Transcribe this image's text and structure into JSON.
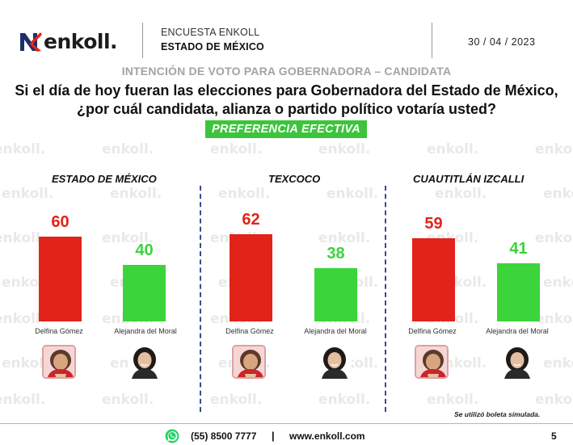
{
  "header": {
    "logo_text": "enkoll.",
    "survey_label": "ENCUESTA ENKOLL",
    "state_label": "ESTADO DE MÉXICO",
    "date": "30 / 04 / 2023"
  },
  "subtitle": "INTENCIÓN DE VOTO PARA GOBERNADORA – CANDIDATA",
  "question_line1": "Si el día de hoy fueran las elecciones para Gobernadora del Estado de México,",
  "question_line2": "¿por cuál candidata, alianza o partido político votaría usted?",
  "badge": "PREFERENCIA EFECTIVA",
  "watermark_text": "enkoll.",
  "colors": {
    "candidate_1": "#e2231a",
    "candidate_2": "#3bd43b",
    "badge": "#3cc43c",
    "separator": "#3a4a8a"
  },
  "chart_data": [
    {
      "type": "bar",
      "title": "ESTADO DE MÉXICO",
      "categories": [
        "Delfina Gómez",
        "Alejandra del Moral"
      ],
      "values": [
        60,
        40
      ],
      "ylim": [
        0,
        100
      ]
    },
    {
      "type": "bar",
      "title": "TEXCOCO",
      "categories": [
        "Delfina Gómez",
        "Alejandra del Moral"
      ],
      "values": [
        62,
        38
      ],
      "ylim": [
        0,
        100
      ]
    },
    {
      "type": "bar",
      "title": "CUAUTITLÁN IZCALLI",
      "categories": [
        "Delfina Gómez",
        "Alejandra del Moral"
      ],
      "values": [
        59,
        41
      ],
      "ylim": [
        0,
        100
      ]
    }
  ],
  "footnote": "Se utilizó boleta simulada.",
  "footer": {
    "phone": "(55) 8500 7777",
    "separator": "|",
    "website": "www.enkoll.com",
    "page_number": "5"
  }
}
